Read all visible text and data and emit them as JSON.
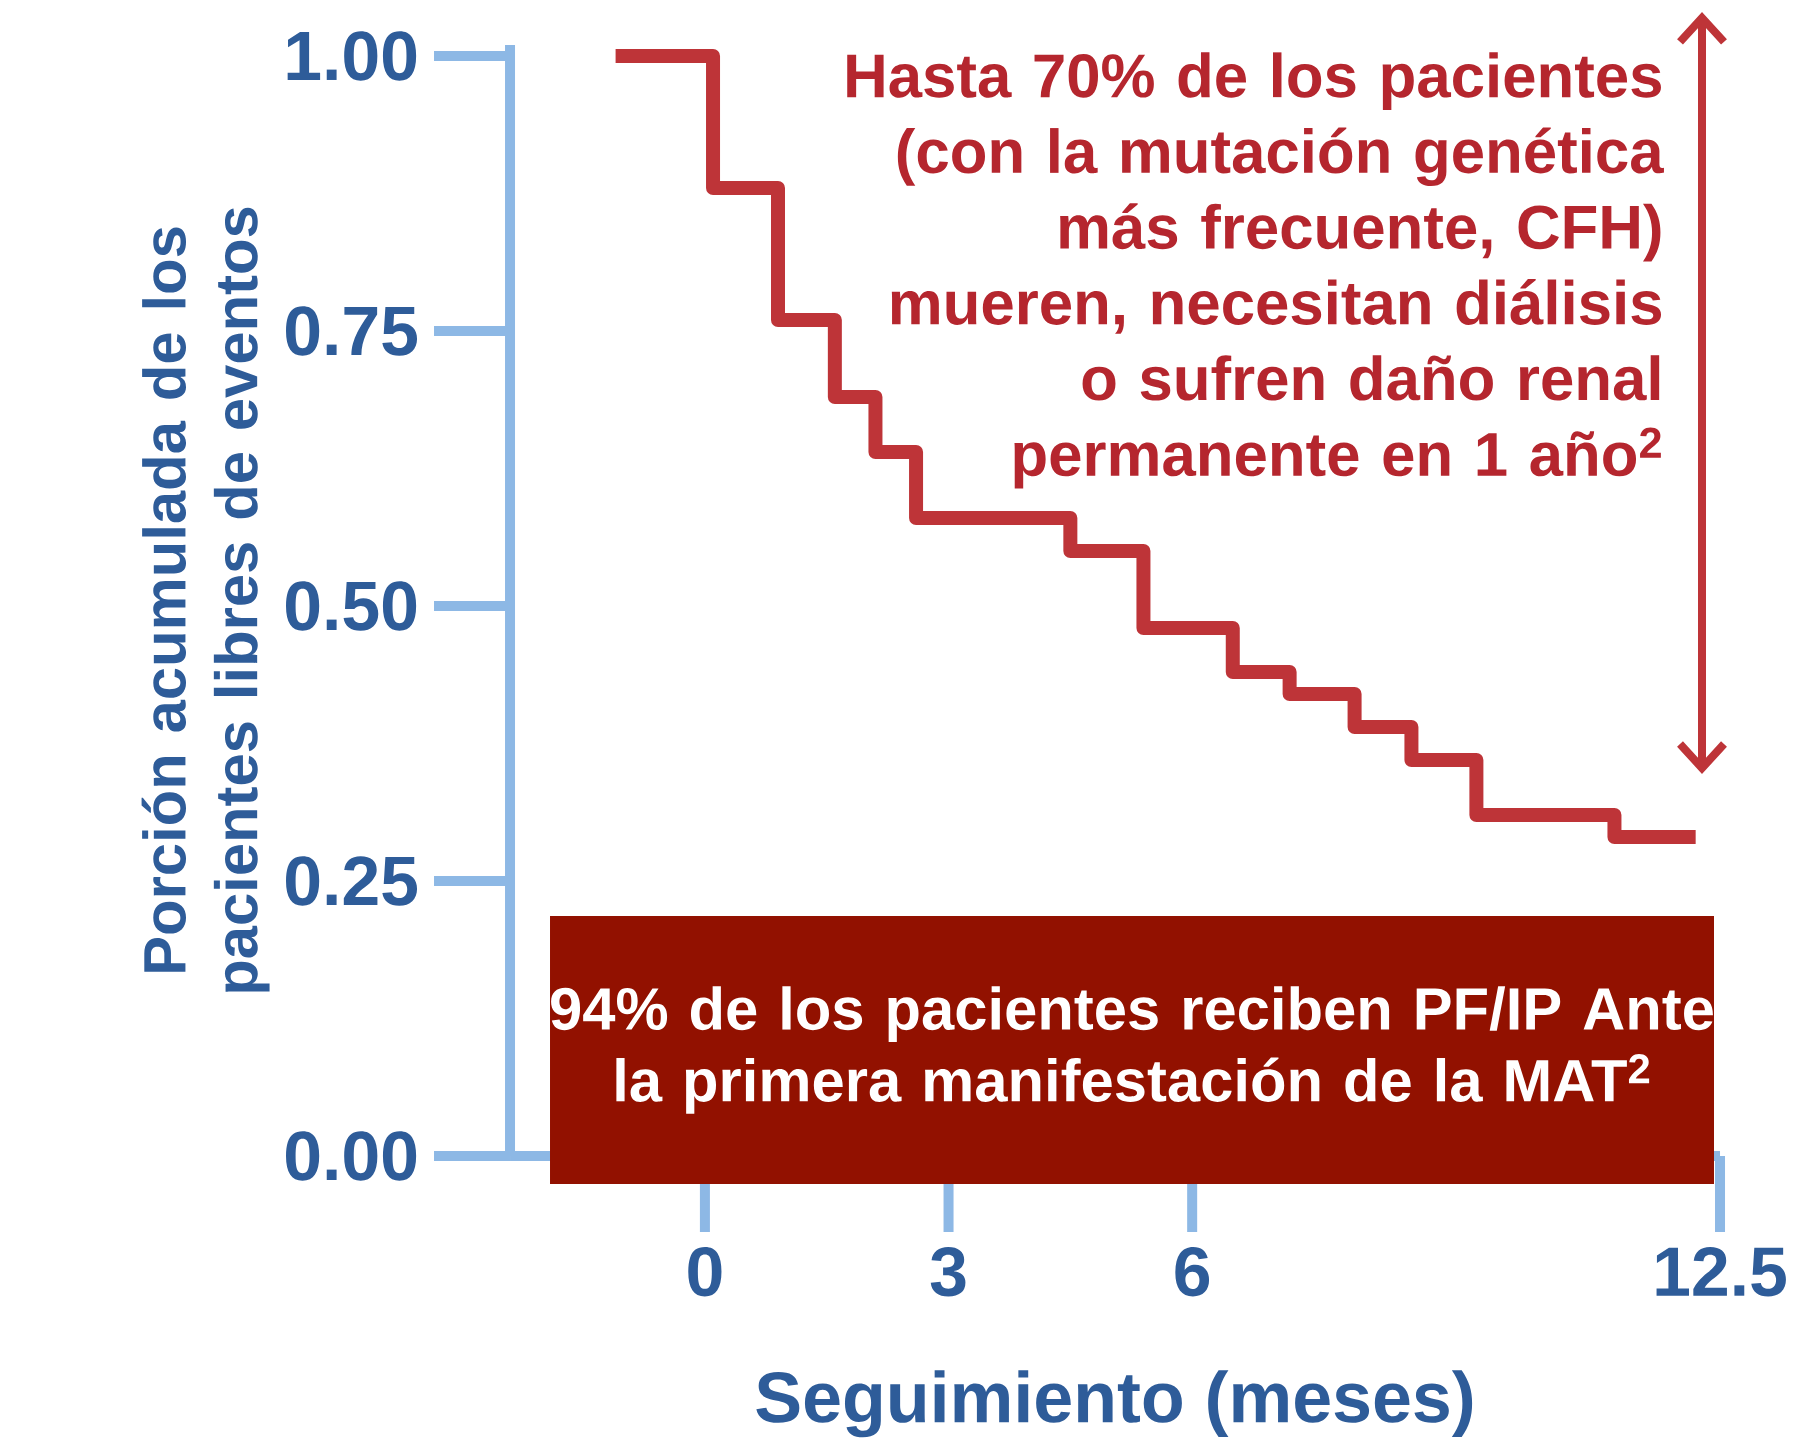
{
  "chart_data": {
    "type": "step",
    "xlabel": "Seguimiento (meses)",
    "ylabel": "Porción acumulada de los pacientes libres de eventos",
    "x": [
      -1.1,
      0.1,
      0.9,
      1.6,
      2.1,
      2.6,
      4.5,
      5.4,
      6.5,
      7.2,
      8.0,
      8.7,
      9.5,
      11.2,
      12.2
    ],
    "values": [
      1.0,
      0.88,
      0.76,
      0.69,
      0.64,
      0.58,
      0.55,
      0.48,
      0.44,
      0.42,
      0.39,
      0.36,
      0.31,
      0.29,
      0.29
    ],
    "color": "#be3438",
    "line_style": "solid",
    "xlim": [
      -2.4,
      12.5
    ],
    "xticks": [
      0,
      3,
      6,
      12.5
    ],
    "ylim": [
      0,
      1.01
    ],
    "yticks": [
      {
        "value": 0,
        "label": "0.00"
      },
      {
        "value": 0.25,
        "label": "0.25"
      },
      {
        "value": 0.5,
        "label": "0.50"
      },
      {
        "value": 0.75,
        "label": "0.75"
      },
      {
        "value": 1.0,
        "label": "1.00"
      }
    ],
    "annotations": [
      "Hasta 70% de los pacientes (con la mutación genética más frecuente, CFH) mueren, necesitan diálisis o sufren daño renal permanente en 1 año$^{2}$",
      "94% de los pacientes reciben PF/IP Ante la primera manifestación de la MAT$^{2}$"
    ]
  }
}
